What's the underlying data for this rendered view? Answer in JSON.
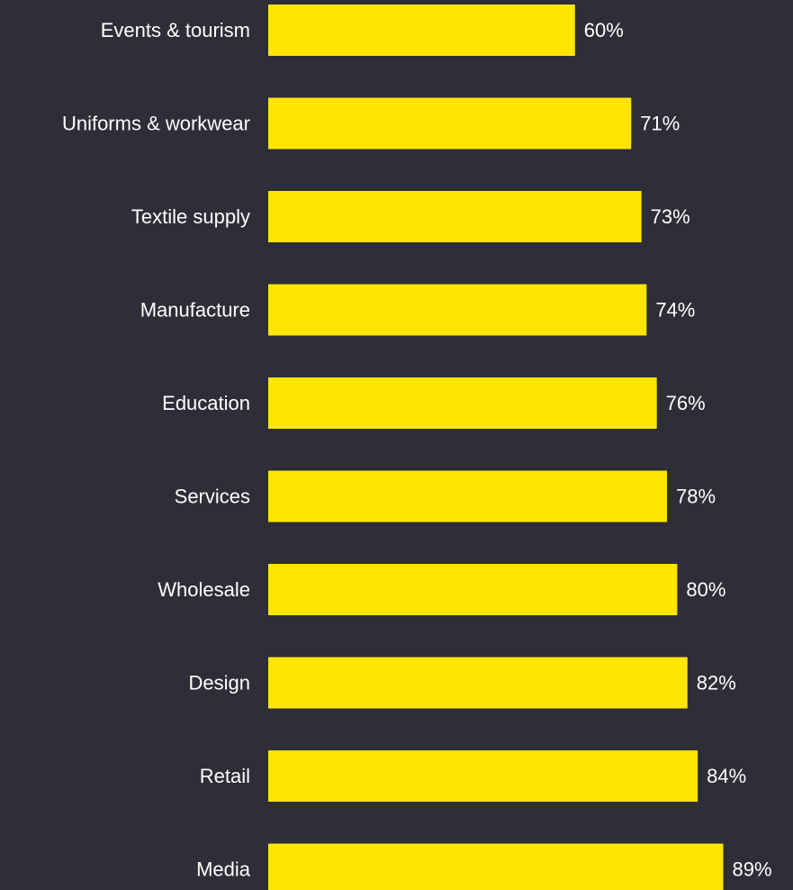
{
  "colors": {
    "background": "#2e2e38",
    "bar": "#ffe600",
    "text": "#ffffff"
  },
  "chart_data": {
    "type": "bar",
    "orientation": "horizontal",
    "categories": [
      "Events & tourism",
      "Uniforms & workwear",
      "Textile supply",
      "Manufacture",
      "Education",
      "Services",
      "Wholesale",
      "Design",
      "Retail",
      "Media"
    ],
    "values": [
      60,
      71,
      73,
      74,
      76,
      78,
      80,
      82,
      84,
      89
    ],
    "value_labels": [
      "60%",
      "71%",
      "73%",
      "74%",
      "76%",
      "78%",
      "80%",
      "82%",
      "84%",
      "89%"
    ],
    "unit": "%",
    "xlim": [
      0,
      100
    ],
    "grid": false,
    "legend": "none"
  }
}
